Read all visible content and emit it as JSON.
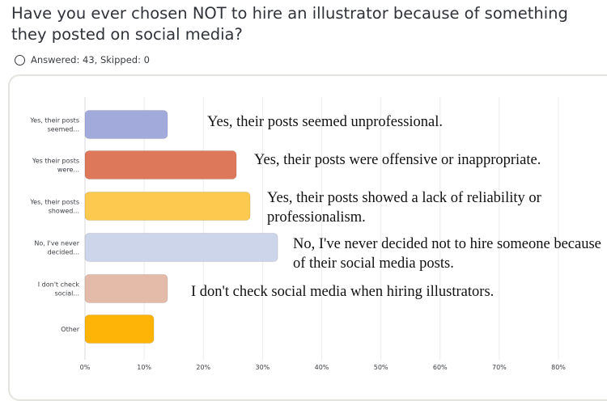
{
  "question": "Have you ever chosen NOT to hire an illustrator because of something they posted on social media?",
  "status": {
    "answered_label": "Answered:",
    "answered_value": "43",
    "skipped_label": "Skipped:",
    "skipped_value": "0"
  },
  "chart_data": {
    "type": "bar",
    "orientation": "horizontal",
    "categories": [
      "Yes, their posts seemed...",
      "Yes their posts were...",
      "Yes, their posts showed...",
      "No, I've never decided...",
      "I don't check social...",
      "Other"
    ],
    "values": [
      13.95,
      25.58,
      27.91,
      32.56,
      13.95,
      11.63
    ],
    "colors": [
      "#a2aadc",
      "#de785a",
      "#fdc94f",
      "#cdd5ea",
      "#e4bba8",
      "#fdb407"
    ],
    "xlim": [
      0,
      80
    ],
    "xticks": [
      "0%",
      "10%",
      "20%",
      "30%",
      "40%",
      "50%",
      "60%",
      "70%",
      "80%"
    ],
    "grid": true,
    "annotations": [
      "Yes, their posts seemed unprofessional.",
      "Yes, their posts were offensive or inappropriate.",
      "Yes, their posts showed a lack of reliability or professionalism.",
      "No, I've never decided not to hire someone because of their social media posts.",
      "I don't check social media when hiring illustrators."
    ]
  }
}
